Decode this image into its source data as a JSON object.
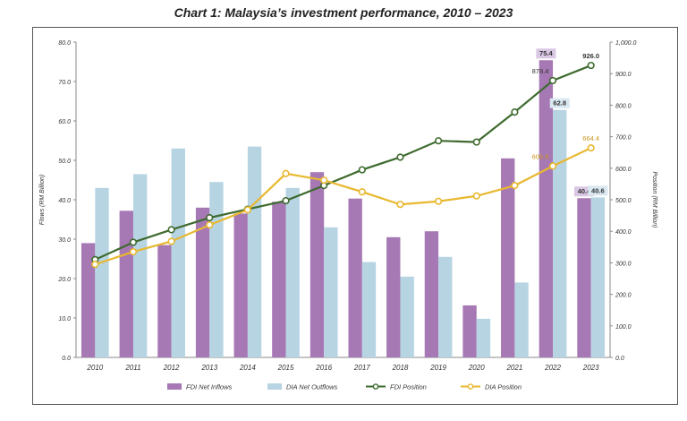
{
  "chart_data": {
    "type": "bar",
    "title": "Chart 1: Malaysia’s investment performance, 2010 – 2023",
    "categories": [
      "2010",
      "2011",
      "2012",
      "2013",
      "2014",
      "2015",
      "2016",
      "2017",
      "2018",
      "2019",
      "2020",
      "2021",
      "2022",
      "2023"
    ],
    "ylabel": "Flows (RM Billion)",
    "ylabel_right": "Position (RM Billion)",
    "ylim": [
      0,
      80
    ],
    "ylim_right": [
      0,
      1000
    ],
    "y_ticks": [
      "0.0",
      "10.0",
      "20.0",
      "30.0",
      "40.0",
      "50.0",
      "60.0",
      "70.0",
      "80.0"
    ],
    "y_ticks_right": [
      "0.0",
      "100.0",
      "200.0",
      "300.0",
      "400.0",
      "500.0",
      "600.0",
      "700.0",
      "800.0",
      "900.0",
      "1,000.0"
    ],
    "bar_series": [
      {
        "name": "FDI Net Inflows",
        "color": "#a678b4",
        "values": [
          29.0,
          37.2,
          28.5,
          38.0,
          36.5,
          39.5,
          47.0,
          40.3,
          30.5,
          32.0,
          13.2,
          50.5,
          75.4,
          40.4
        ]
      },
      {
        "name": "DIA Net Outflows",
        "color": "#b7d4e3",
        "values": [
          43.0,
          46.5,
          53.0,
          44.5,
          53.5,
          43.0,
          33.0,
          24.2,
          20.5,
          25.5,
          9.8,
          19.0,
          62.8,
          40.6
        ]
      }
    ],
    "line_series": [
      {
        "name": "FDI Position",
        "color": "#3e6b2f",
        "values": [
          310.0,
          365.0,
          405.0,
          443.0,
          470.0,
          497.0,
          545.0,
          595.0,
          635.0,
          687.0,
          683.0,
          778.0,
          878.0,
          926.0
        ]
      },
      {
        "name": "DIA Position",
        "color": "#e8b830",
        "values": [
          295.0,
          335.0,
          368.0,
          420.0,
          468.0,
          583.0,
          562.0,
          525.0,
          485.0,
          495.0,
          512.0,
          545.0,
          606.8,
          664.4
        ]
      }
    ],
    "data_labels": [
      {
        "series": "FDI Net Inflows",
        "category": "2022",
        "text": "75.4",
        "bg": "#d9c7e4"
      },
      {
        "series": "DIA Net Outflows",
        "category": "2022",
        "text": "62.8",
        "bg": "#d9e8f1"
      },
      {
        "series": "FDI Net Inflows",
        "category": "2023",
        "text": "40.4",
        "bg": "#d9c7e4"
      },
      {
        "series": "DIA Net Outflows",
        "category": "2023",
        "text": "40.6",
        "bg": "#d9e8f1"
      },
      {
        "series": "FDI Position",
        "category": "2022",
        "text": "878.4",
        "bg": ""
      },
      {
        "series": "FDI Position",
        "category": "2023",
        "text": "926.0",
        "bg": ""
      },
      {
        "series": "DIA Position",
        "category": "2022",
        "text": "606.8",
        "bg": ""
      },
      {
        "series": "DIA Position",
        "category": "2023",
        "text": "664.4",
        "bg": ""
      }
    ],
    "legend_position": "bottom",
    "grid": false
  }
}
